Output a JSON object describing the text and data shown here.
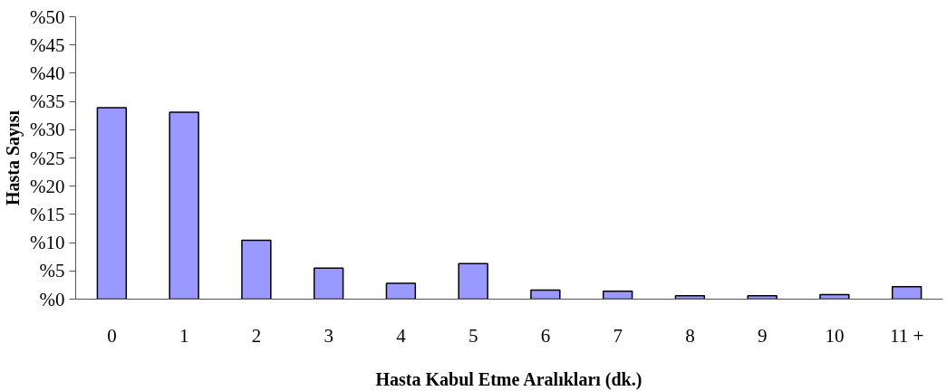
{
  "chart_data": {
    "type": "bar",
    "xlabel": "Hasta Kabul Etme Aralıkları (dk.)",
    "ylabel": "Hasta Sayısı",
    "categories": [
      "0",
      "1",
      "2",
      "3",
      "4",
      "5",
      "6",
      "7",
      "8",
      "9",
      "10",
      "11 +"
    ],
    "values": [
      33.9,
      33.1,
      10.4,
      5.5,
      2.8,
      6.3,
      1.6,
      1.4,
      0.6,
      0.6,
      0.8,
      2.2
    ],
    "color": "#9999ff",
    "ylim": [
      0,
      50
    ],
    "yticks": [
      {
        "value": 0,
        "label": "%0"
      },
      {
        "value": 5,
        "label": "%5"
      },
      {
        "value": 10,
        "label": "%10"
      },
      {
        "value": 15,
        "label": "%15"
      },
      {
        "value": 20,
        "label": "%20"
      },
      {
        "value": 25,
        "label": "%25"
      },
      {
        "value": 30,
        "label": "%30"
      },
      {
        "value": 35,
        "label": "%35"
      },
      {
        "value": 40,
        "label": "%40"
      },
      {
        "value": 45,
        "label": "%45"
      },
      {
        "value": 50,
        "label": "%50"
      }
    ],
    "grid": false
  }
}
